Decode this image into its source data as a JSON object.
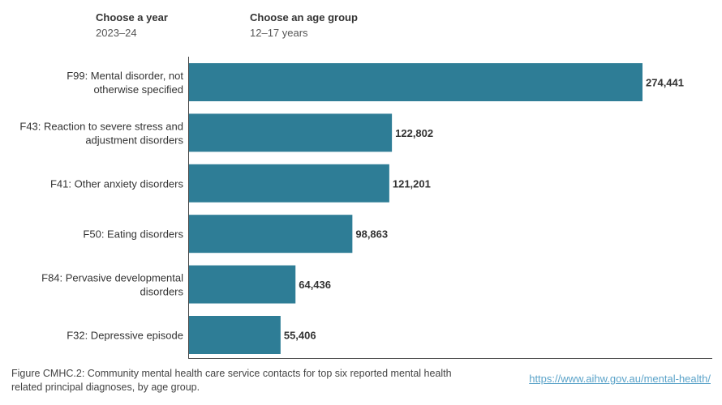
{
  "filters": {
    "year": {
      "label": "Choose a year",
      "value": "2023–24"
    },
    "age_group": {
      "label": "Choose an age group",
      "value": "12–17 years"
    }
  },
  "chart_data": {
    "type": "bar",
    "orientation": "horizontal",
    "categories": [
      [
        "F99: Mental disorder, not",
        "otherwise specified"
      ],
      [
        "F43: Reaction to severe stress and",
        "adjustment disorders"
      ],
      [
        "F41: Other anxiety disorders"
      ],
      [
        "F50: Eating disorders"
      ],
      [
        "F84: Pervasive developmental",
        "disorders"
      ],
      [
        "F32: Depressive episode"
      ]
    ],
    "values": [
      274441,
      122802,
      121201,
      98863,
      64436,
      55406
    ],
    "value_labels": [
      "274,441",
      "122,802",
      "121,201",
      "98,863",
      "64,436",
      "55,406"
    ],
    "xlim": [
      0,
      320000
    ],
    "bar_color": "#2e7d96",
    "grid": false
  },
  "caption": "Figure CMHC.2: Community mental health care service contacts for top six reported mental health related principal diagnoses, by age group.",
  "source": "https://www.aihw.gov.au/mental-health/"
}
